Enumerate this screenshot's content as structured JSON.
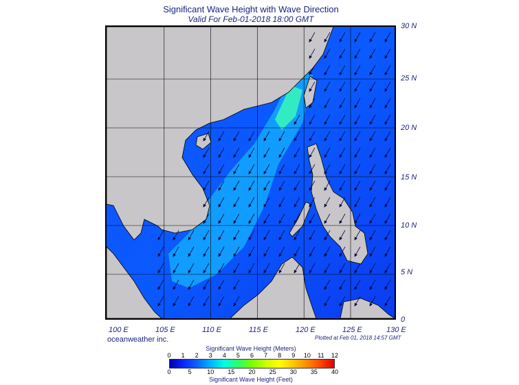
{
  "title": "Significant Wave Height with Wave Direction",
  "subtitle": "Valid For Feb-01-2018 18:00 GMT",
  "latitude_labels": [
    "30 N",
    "25 N",
    "20 N",
    "15 N",
    "10 N",
    "5 N",
    "0"
  ],
  "longitude_labels": [
    "100 E",
    "105 E",
    "110 E",
    "115 E",
    "120 E",
    "125 E",
    "130 E"
  ],
  "brand": "oceanweather inc.",
  "plotted": "Plotted at Feb 01, 2018 14:57 GMT",
  "legend": {
    "meters_title": "Significant Wave Height (Meters)",
    "meters_ticks": [
      "0",
      "1",
      "2",
      "3",
      "4",
      "5",
      "6",
      "7",
      "8",
      "9",
      "10",
      "11",
      "12"
    ],
    "feet_title": "Significant Wave Height (Feet)",
    "feet_ticks": [
      "0",
      "5",
      "10",
      "15",
      "20",
      "25",
      "30",
      "35",
      "40"
    ],
    "colors": [
      "#0000b4",
      "#0a28ff",
      "#0a64ff",
      "#00b4ff",
      "#00ffe6",
      "#28ff64",
      "#78ff00",
      "#c8ff00",
      "#ffff00",
      "#ffc800",
      "#ff8c00",
      "#ff4600",
      "#e10000"
    ]
  },
  "map": {
    "land_color": "#c8c6c8",
    "sea_color": "#1e46ff",
    "wave_direction": "southwest"
  }
}
